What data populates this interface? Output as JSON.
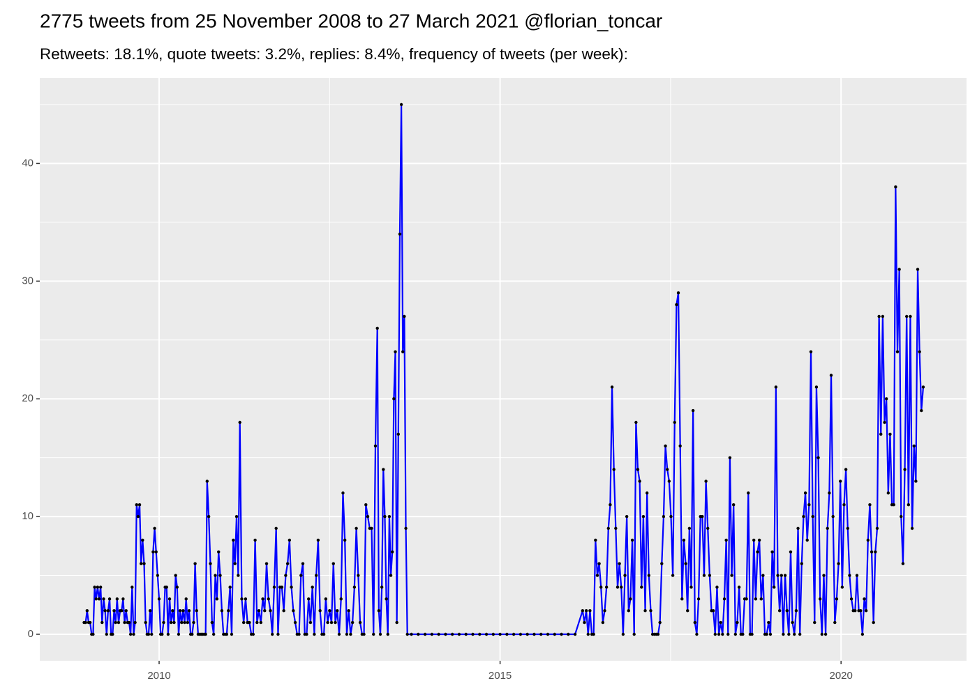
{
  "chart_data": {
    "type": "line",
    "title": "2775 tweets from 25 November 2008 to 27 March 2021 @florian_toncar",
    "subtitle": "Retweets: 18.1%, quote tweets: 3.2%, replies: 8.4%, frequency of tweets (per week):",
    "x": [
      2008.9,
      2008.922,
      2008.944,
      2008.966,
      2008.988,
      2009.01,
      2009.032,
      2009.054,
      2009.076,
      2009.098,
      2009.12,
      2009.142,
      2009.164,
      2009.186,
      2009.208,
      2009.23,
      2009.252,
      2009.274,
      2009.296,
      2009.318,
      2009.34,
      2009.362,
      2009.384,
      2009.406,
      2009.428,
      2009.45,
      2009.472,
      2009.494,
      2009.516,
      2009.538,
      2009.56,
      2009.582,
      2009.604,
      2009.626,
      2009.648,
      2009.67,
      2009.692,
      2009.714,
      2009.736,
      2009.758,
      2009.78,
      2009.802,
      2009.824,
      2009.846,
      2009.868,
      2009.89,
      2009.912,
      2009.934,
      2009.956,
      2009.978,
      2010.0,
      2010.022,
      2010.044,
      2010.066,
      2010.088,
      2010.11,
      2010.132,
      2010.154,
      2010.176,
      2010.198,
      2010.22,
      2010.242,
      2010.264,
      2010.286,
      2010.308,
      2010.33,
      2010.352,
      2010.374,
      2010.396,
      2010.418,
      2010.44,
      2010.462,
      2010.484,
      2010.506,
      2010.528,
      2010.55,
      2010.572,
      2010.594,
      2010.616,
      2010.638,
      2010.66,
      2010.682,
      2010.704,
      2010.728,
      2010.752,
      2010.776,
      2010.8,
      2010.824,
      2010.848,
      2010.872,
      2010.896,
      2010.92,
      2010.944,
      2010.968,
      2010.992,
      2011.016,
      2011.04,
      2011.064,
      2011.088,
      2011.112,
      2011.136,
      2011.16,
      2011.184,
      2011.212,
      2011.24,
      2011.268,
      2011.296,
      2011.324,
      2011.352,
      2011.38,
      2011.408,
      2011.436,
      2011.464,
      2011.492,
      2011.52,
      2011.548,
      2011.576,
      2011.604,
      2011.632,
      2011.66,
      2011.688,
      2011.716,
      2011.744,
      2011.772,
      2011.8,
      2011.828,
      2011.856,
      2011.884,
      2011.912,
      2011.94,
      2011.968,
      2011.996,
      2012.024,
      2012.052,
      2012.08,
      2012.108,
      2012.136,
      2012.164,
      2012.192,
      2012.22,
      2012.248,
      2012.276,
      2012.304,
      2012.332,
      2012.36,
      2012.388,
      2012.416,
      2012.444,
      2012.472,
      2012.5,
      2012.528,
      2012.556,
      2012.584,
      2012.612,
      2012.64,
      2012.668,
      2012.696,
      2012.724,
      2012.752,
      2012.78,
      2012.808,
      2012.836,
      2012.864,
      2012.892,
      2012.92,
      2012.948,
      2012.976,
      2013.004,
      2013.032,
      2013.06,
      2013.088,
      2013.116,
      2013.144,
      2013.172,
      2013.2,
      2013.222,
      2013.244,
      2013.266,
      2013.288,
      2013.31,
      2013.332,
      2013.354,
      2013.376,
      2013.398,
      2013.42,
      2013.442,
      2013.464,
      2013.486,
      2013.508,
      2013.53,
      2013.552,
      2013.574,
      2013.596,
      2013.618,
      2013.64,
      2013.7,
      2013.8,
      2013.9,
      2014.0,
      2014.1,
      2014.2,
      2014.3,
      2014.4,
      2014.5,
      2014.6,
      2014.7,
      2014.8,
      2014.9,
      2015.0,
      2015.1,
      2015.2,
      2015.3,
      2015.4,
      2015.5,
      2015.6,
      2015.7,
      2015.8,
      2015.9,
      2016.0,
      2016.1,
      2016.21,
      2016.237,
      2016.264,
      2016.291,
      2016.318,
      2016.345,
      2016.372,
      2016.399,
      2016.426,
      2016.453,
      2016.48,
      2016.507,
      2016.534,
      2016.561,
      2016.588,
      2016.615,
      2016.642,
      2016.669,
      2016.696,
      2016.723,
      2016.75,
      2016.777,
      2016.804,
      2016.831,
      2016.858,
      2016.885,
      2016.912,
      2016.939,
      2016.966,
      2016.993,
      2017.02,
      2017.047,
      2017.074,
      2017.101,
      2017.128,
      2017.155,
      2017.182,
      2017.209,
      2017.236,
      2017.263,
      2017.29,
      2017.317,
      2017.344,
      2017.371,
      2017.398,
      2017.425,
      2017.452,
      2017.479,
      2017.506,
      2017.533,
      2017.56,
      2017.587,
      2017.614,
      2017.641,
      2017.668,
      2017.695,
      2017.722,
      2017.749,
      2017.776,
      2017.803,
      2017.83,
      2017.857,
      2017.884,
      2017.911,
      2017.938,
      2017.965,
      2017.992,
      2018.019,
      2018.046,
      2018.073,
      2018.1,
      2018.127,
      2018.154,
      2018.181,
      2018.208,
      2018.235,
      2018.262,
      2018.289,
      2018.316,
      2018.343,
      2018.37,
      2018.397,
      2018.424,
      2018.451,
      2018.478,
      2018.505,
      2018.532,
      2018.559,
      2018.586,
      2018.613,
      2018.64,
      2018.667,
      2018.694,
      2018.721,
      2018.748,
      2018.775,
      2018.802,
      2018.829,
      2018.856,
      2018.883,
      2018.91,
      2018.937,
      2018.964,
      2018.991,
      2019.018,
      2019.045,
      2019.072,
      2019.099,
      2019.126,
      2019.153,
      2019.18,
      2019.207,
      2019.234,
      2019.261,
      2019.288,
      2019.315,
      2019.342,
      2019.369,
      2019.396,
      2019.423,
      2019.45,
      2019.477,
      2019.504,
      2019.531,
      2019.558,
      2019.585,
      2019.612,
      2019.639,
      2019.666,
      2019.693,
      2019.72,
      2019.747,
      2019.774,
      2019.801,
      2019.828,
      2019.855,
      2019.882,
      2019.909,
      2019.936,
      2019.963,
      2019.99,
      2020.017,
      2020.044,
      2020.071,
      2020.098,
      2020.125,
      2020.152,
      2020.179,
      2020.206,
      2020.233,
      2020.26,
      2020.287,
      2020.314,
      2020.341,
      2020.368,
      2020.395,
      2020.422,
      2020.449,
      2020.476,
      2020.503,
      2020.53,
      2020.557,
      2020.584,
      2020.611,
      2020.638,
      2020.665,
      2020.692,
      2020.719,
      2020.746,
      2020.773,
      2020.8,
      2020.827,
      2020.854,
      2020.881,
      2020.908,
      2020.935,
      2020.962,
      2020.989,
      2021.016,
      2021.043,
      2021.07,
      2021.097,
      2021.124,
      2021.151,
      2021.178,
      2021.205
    ],
    "series": [
      {
        "color": "#0000ff",
        "values": [
          1,
          1,
          2,
          1,
          1,
          0,
          0,
          4,
          3,
          4,
          3,
          4,
          1,
          3,
          2,
          0,
          2,
          3,
          0,
          0,
          2,
          1,
          3,
          1,
          2,
          2,
          3,
          1,
          2,
          1,
          1,
          0,
          4,
          0,
          1,
          11,
          10,
          11,
          6,
          8,
          6,
          1,
          0,
          0,
          2,
          0,
          7,
          9,
          7,
          5,
          3,
          0,
          0,
          1,
          4,
          4,
          0,
          3,
          1,
          2,
          1,
          5,
          4,
          0,
          2,
          1,
          2,
          1,
          3,
          1,
          2,
          0,
          0,
          1,
          6,
          2,
          0,
          0,
          0,
          0,
          0,
          0,
          13,
          10,
          6,
          1,
          0,
          5,
          3,
          7,
          5,
          2,
          0,
          0,
          0,
          2,
          4,
          0,
          8,
          6,
          10,
          5,
          18,
          3,
          1,
          3,
          1,
          1,
          0,
          0,
          8,
          1,
          2,
          1,
          3,
          2,
          6,
          3,
          2,
          0,
          4,
          9,
          0,
          4,
          4,
          2,
          5,
          6,
          8,
          4,
          2,
          1,
          0,
          0,
          5,
          6,
          0,
          0,
          3,
          1,
          4,
          0,
          5,
          8,
          2,
          0,
          0,
          3,
          1,
          2,
          1,
          6,
          1,
          2,
          0,
          3,
          12,
          8,
          0,
          2,
          0,
          1,
          4,
          9,
          5,
          1,
          0,
          0,
          11,
          10,
          9,
          9,
          0,
          16,
          26,
          2,
          0,
          4,
          14,
          10,
          3,
          0,
          10,
          5,
          7,
          20,
          24,
          1,
          17,
          34,
          45,
          24,
          27,
          9,
          0,
          0,
          0,
          0,
          0,
          0,
          0,
          0,
          0,
          0,
          0,
          0,
          0,
          0,
          0,
          0,
          0,
          0,
          0,
          0,
          0,
          0,
          0,
          0,
          0,
          0,
          2,
          1,
          2,
          0,
          2,
          0,
          0,
          8,
          5,
          6,
          4,
          1,
          2,
          4,
          9,
          11,
          21,
          14,
          9,
          4,
          6,
          4,
          0,
          5,
          10,
          2,
          3,
          8,
          0,
          18,
          14,
          13,
          4,
          10,
          2,
          12,
          5,
          2,
          0,
          0,
          0,
          0,
          1,
          6,
          10,
          16,
          14,
          13,
          10,
          5,
          18,
          28,
          29,
          16,
          3,
          8,
          6,
          2,
          9,
          4,
          19,
          1,
          0,
          3,
          10,
          10,
          5,
          13,
          9,
          5,
          2,
          2,
          0,
          4,
          0,
          1,
          0,
          3,
          8,
          0,
          15,
          5,
          11,
          0,
          1,
          4,
          0,
          0,
          3,
          3,
          12,
          0,
          0,
          8,
          3,
          7,
          8,
          3,
          5,
          0,
          0,
          1,
          0,
          7,
          4,
          21,
          5,
          2,
          5,
          0,
          5,
          2,
          0,
          7,
          1,
          0,
          2,
          9,
          0,
          6,
          10,
          12,
          8,
          11,
          24,
          10,
          1,
          21,
          15,
          3,
          0,
          5,
          0,
          9,
          12,
          22,
          10,
          1,
          3,
          6,
          13,
          4,
          11,
          14,
          9,
          5,
          3,
          2,
          2,
          5,
          2,
          2,
          0,
          3,
          2,
          8,
          11,
          7,
          1,
          7,
          9,
          27,
          17,
          27,
          18,
          20,
          12,
          17,
          11,
          11,
          38,
          24,
          31,
          10,
          6,
          14,
          27,
          11,
          27,
          9,
          16,
          13,
          31,
          24,
          19,
          21
        ]
      }
    ],
    "marker_color": "#000000",
    "xlim": [
      2008.25,
      2021.84
    ],
    "ylim": [
      -2.25,
      47.25
    ],
    "xticks": [
      2010,
      2015,
      2020
    ],
    "yticks": [
      0,
      10,
      20,
      30,
      40
    ],
    "grid": true
  }
}
